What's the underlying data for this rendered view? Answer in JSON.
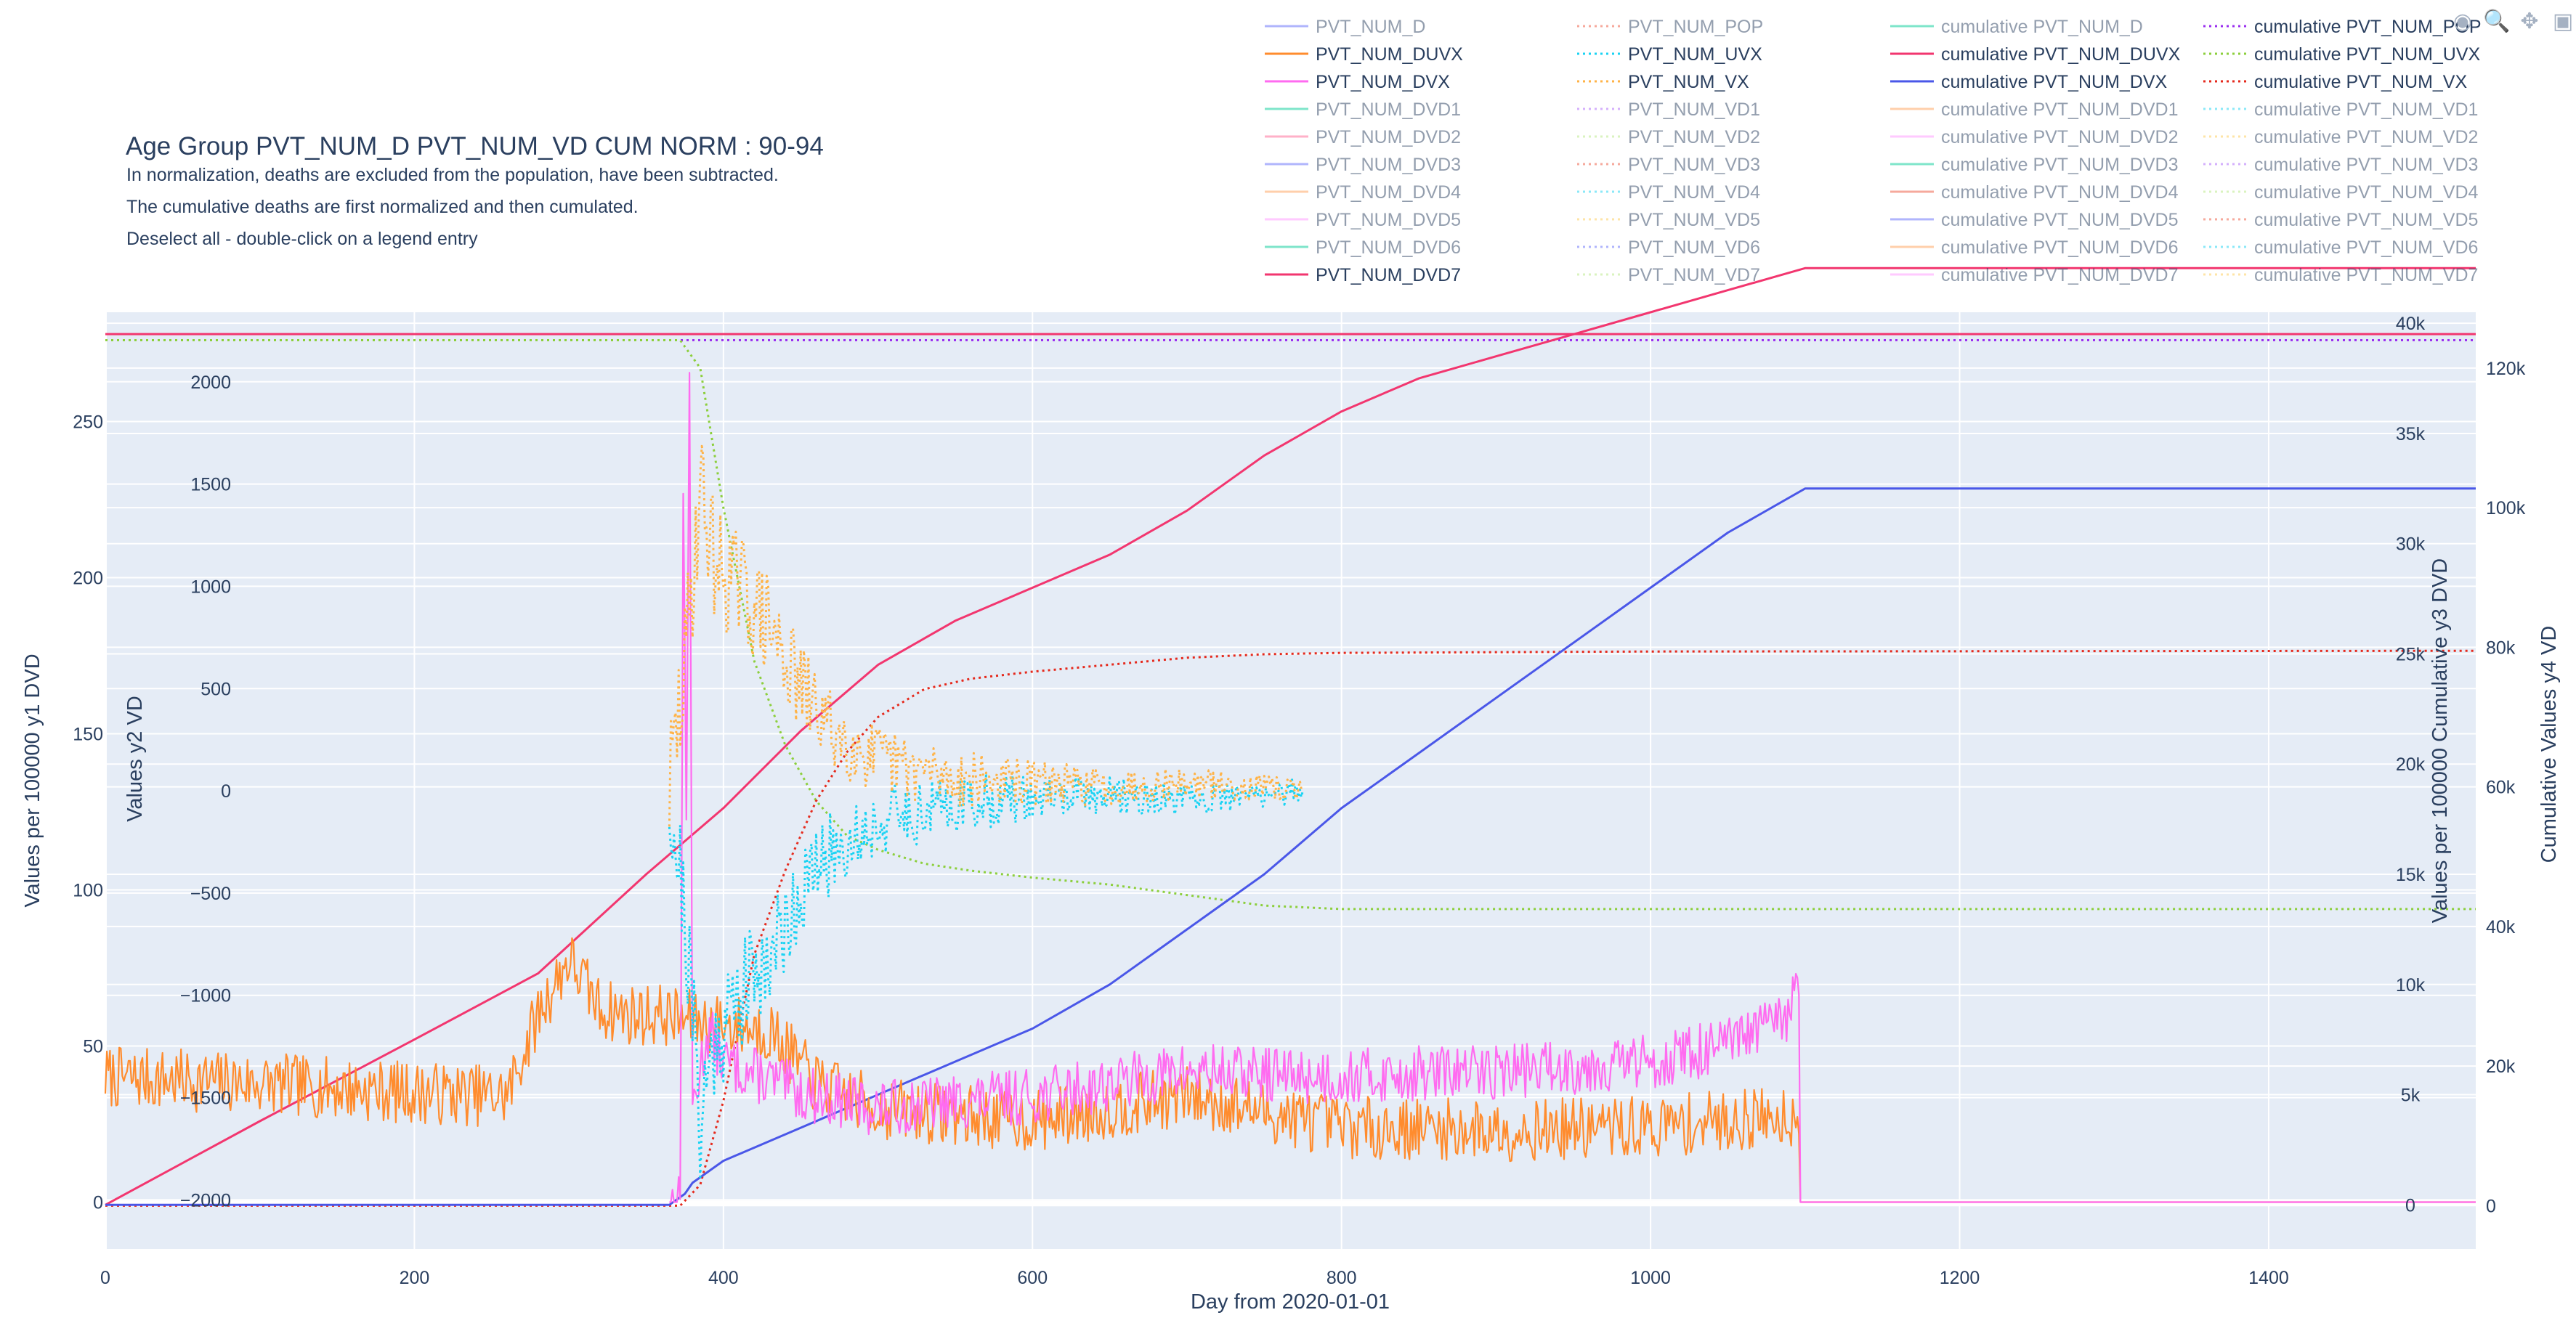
{
  "header": {
    "title": "Age Group PVT_NUM_D PVT_NUM_VD CUM NORM : 90-94",
    "notes": [
      "In normalization, deaths are excluded from the population, have been subtracted.",
      "The cumulative deaths are first normalized and then cumulated.",
      "Deselect all - double-click on a legend entry"
    ]
  },
  "modebar": {
    "icons": [
      "camera-icon",
      "zoom-icon",
      "pan-icon",
      "autoscale-icon"
    ]
  },
  "chart_data": {
    "type": "line",
    "title": "Age Group PVT_NUM_D PVT_NUM_VD CUM NORM : 90-94",
    "xlabel": "Day from 2020-01-01",
    "xlim": [
      0,
      1534
    ],
    "x_ticks": [
      0,
      200,
      400,
      600,
      800,
      1000,
      1200,
      1400
    ],
    "grid": true,
    "legend_position": "top-right",
    "axes": {
      "y1": {
        "label": "Values per 100000 y1 DVD",
        "range": [
          -15,
          285
        ],
        "ticks": [
          0,
          50,
          100,
          150,
          200,
          250
        ],
        "tick_labels": [
          "0",
          "50",
          "100",
          "150",
          "200",
          "250"
        ]
      },
      "y2": {
        "label": "Values y2 VD",
        "range": [
          -2240,
          2340
        ],
        "ticks": [
          -2000,
          -1500,
          -1000,
          -500,
          0,
          500,
          1000,
          1500,
          2000
        ],
        "tick_labels": [
          "−2000",
          "−1500",
          "−1000",
          "−500",
          "0",
          "500",
          "1000",
          "1500",
          "2000"
        ]
      },
      "y3": {
        "label": "Values per 100000 Cumulative y3 DVD",
        "range": [
          -2000,
          40500
        ],
        "ticks": [
          0,
          5000,
          10000,
          15000,
          20000,
          25000,
          30000,
          35000,
          40000
        ],
        "tick_labels": [
          "0",
          "5k",
          "10k",
          "15k",
          "20k",
          "25k",
          "30k",
          "35k",
          "40k"
        ]
      },
      "y4": {
        "label": "Cumulative Values y4 VD",
        "range": [
          -6200,
          128000
        ],
        "ticks": [
          0,
          20000,
          40000,
          60000,
          80000,
          100000,
          120000
        ],
        "tick_labels": [
          "0",
          "20k",
          "40k",
          "60k",
          "80k",
          "100k",
          "120k"
        ]
      }
    },
    "legend": [
      {
        "name": "PVT_NUM_D",
        "color": "#636efa",
        "dash": "solid",
        "active": false
      },
      {
        "name": "PVT_NUM_DUVX",
        "color": "#ff8c2e",
        "dash": "solid",
        "active": true
      },
      {
        "name": "PVT_NUM_DVX",
        "color": "#ff6bf0",
        "dash": "solid",
        "active": true
      },
      {
        "name": "PVT_NUM_DVD1",
        "color": "#00cc96",
        "dash": "solid",
        "active": false
      },
      {
        "name": "PVT_NUM_DVD2",
        "color": "#ff6692",
        "dash": "solid",
        "active": false
      },
      {
        "name": "PVT_NUM_DVD3",
        "color": "#636efa",
        "dash": "solid",
        "active": false
      },
      {
        "name": "PVT_NUM_DVD4",
        "color": "#ffa15a",
        "dash": "solid",
        "active": false
      },
      {
        "name": "PVT_NUM_DVD5",
        "color": "#ff97ff",
        "dash": "solid",
        "active": false
      },
      {
        "name": "PVT_NUM_DVD6",
        "color": "#00cc96",
        "dash": "solid",
        "active": false
      },
      {
        "name": "PVT_NUM_DVD7",
        "color": "#f2366f",
        "dash": "solid",
        "active": true
      },
      {
        "name": "PVT_NUM_POP",
        "color": "#ef553b",
        "dash": "dot",
        "active": false
      },
      {
        "name": "PVT_NUM_UVX",
        "color": "#19d3f3",
        "dash": "dot",
        "active": true
      },
      {
        "name": "PVT_NUM_VX",
        "color": "#ffb347",
        "dash": "dot",
        "active": true
      },
      {
        "name": "PVT_NUM_VD1",
        "color": "#ab63fa",
        "dash": "dot",
        "active": false
      },
      {
        "name": "PVT_NUM_VD2",
        "color": "#b6e880",
        "dash": "dot",
        "active": false
      },
      {
        "name": "PVT_NUM_VD3",
        "color": "#ef553b",
        "dash": "dot",
        "active": false
      },
      {
        "name": "PVT_NUM_VD4",
        "color": "#19d3f3",
        "dash": "dot",
        "active": false
      },
      {
        "name": "PVT_NUM_VD5",
        "color": "#fecb52",
        "dash": "dot",
        "active": false
      },
      {
        "name": "PVT_NUM_VD6",
        "color": "#636efa",
        "dash": "dot",
        "active": false
      },
      {
        "name": "PVT_NUM_VD7",
        "color": "#b6e880",
        "dash": "dot",
        "active": false
      },
      {
        "name": "cumulative PVT_NUM_D",
        "color": "#00cc96",
        "dash": "solid",
        "active": false
      },
      {
        "name": "cumulative PVT_NUM_DUVX",
        "color": "#f2366f",
        "dash": "solid",
        "active": true
      },
      {
        "name": "cumulative PVT_NUM_DVX",
        "color": "#4a57e8",
        "dash": "solid",
        "active": true
      },
      {
        "name": "cumulative PVT_NUM_DVD1",
        "color": "#ffa15a",
        "dash": "solid",
        "active": false
      },
      {
        "name": "cumulative PVT_NUM_DVD2",
        "color": "#ff97ff",
        "dash": "solid",
        "active": false
      },
      {
        "name": "cumulative PVT_NUM_DVD3",
        "color": "#00cc96",
        "dash": "solid",
        "active": false
      },
      {
        "name": "cumulative PVT_NUM_DVD4",
        "color": "#ef553b",
        "dash": "solid",
        "active": false
      },
      {
        "name": "cumulative PVT_NUM_DVD5",
        "color": "#636efa",
        "dash": "solid",
        "active": false
      },
      {
        "name": "cumulative PVT_NUM_DVD6",
        "color": "#ffa15a",
        "dash": "solid",
        "active": false
      },
      {
        "name": "cumulative PVT_NUM_DVD7",
        "color": "#ff97ff",
        "dash": "solid",
        "active": false
      },
      {
        "name": "cumulative PVT_NUM_POP",
        "color": "#9b30f0",
        "dash": "dot",
        "active": true
      },
      {
        "name": "cumulative PVT_NUM_UVX",
        "color": "#8ccf3c",
        "dash": "dot",
        "active": true
      },
      {
        "name": "cumulative PVT_NUM_VX",
        "color": "#e5291c",
        "dash": "dot",
        "active": true
      },
      {
        "name": "cumulative PVT_NUM_VD1",
        "color": "#19d3f3",
        "dash": "dot",
        "active": false
      },
      {
        "name": "cumulative PVT_NUM_VD2",
        "color": "#fecb52",
        "dash": "dot",
        "active": false
      },
      {
        "name": "cumulative PVT_NUM_VD3",
        "color": "#ab63fa",
        "dash": "dot",
        "active": false
      },
      {
        "name": "cumulative PVT_NUM_VD4",
        "color": "#b6e880",
        "dash": "dot",
        "active": false
      },
      {
        "name": "cumulative PVT_NUM_VD5",
        "color": "#ef553b",
        "dash": "dot",
        "active": false
      },
      {
        "name": "cumulative PVT_NUM_VD6",
        "color": "#19d3f3",
        "dash": "dot",
        "active": false
      },
      {
        "name": "cumulative PVT_NUM_VD7",
        "color": "#fecb52",
        "dash": "dot",
        "active": false
      }
    ],
    "series": [
      {
        "name": "cumulative PVT_NUM_POP",
        "axis": "y4",
        "color": "#9b30f0",
        "dash": "dot",
        "width": 3,
        "x": [
          0,
          1534
        ],
        "y": [
          124000,
          124000
        ]
      },
      {
        "name": "cumulative PVT_NUM_UVX",
        "axis": "y4",
        "color": "#8ccf3c",
        "dash": "dot",
        "width": 3,
        "x": [
          0,
          372,
          385,
          400,
          420,
          440,
          460,
          480,
          500,
          530,
          560,
          600,
          650,
          700,
          750,
          800,
          1000,
          1534
        ],
        "y": [
          124000,
          124000,
          120000,
          100000,
          78000,
          66000,
          58000,
          53000,
          51000,
          49000,
          48000,
          47000,
          46000,
          44500,
          43000,
          42500,
          42500,
          42500
        ]
      },
      {
        "name": "cumulative PVT_NUM_VX",
        "axis": "y4",
        "color": "#e5291c",
        "dash": "dot",
        "width": 3,
        "x": [
          0,
          372,
          385,
          400,
          420,
          440,
          460,
          480,
          500,
          530,
          560,
          600,
          650,
          700,
          750,
          800,
          1000,
          1534
        ],
        "y": [
          0,
          0,
          3000,
          15000,
          36000,
          48000,
          58000,
          65000,
          70000,
          74000,
          75500,
          76500,
          77500,
          78500,
          79000,
          79200,
          79400,
          79500
        ]
      },
      {
        "name": "cumulative PVT_NUM_DUVX",
        "axis": "y3",
        "color": "#f2366f",
        "dash": "solid",
        "width": 3,
        "x": [
          0,
          100,
          200,
          280,
          350,
          400,
          450,
          500,
          550,
          600,
          650,
          700,
          750,
          800,
          850,
          900,
          950,
          1000,
          1050,
          1100,
          1534
        ],
        "y": [
          0,
          3800,
          7500,
          10500,
          15000,
          18000,
          21500,
          24500,
          26500,
          28000,
          29500,
          31500,
          34000,
          36000,
          37500,
          38500,
          39500,
          40500,
          41500,
          42500,
          42500
        ]
      },
      {
        "name": "cumulative PVT_NUM_DVX",
        "axis": "y3",
        "color": "#4a57e8",
        "dash": "solid",
        "width": 3,
        "x": [
          0,
          365,
          375,
          380,
          400,
          450,
          500,
          550,
          600,
          650,
          700,
          750,
          800,
          850,
          900,
          950,
          1000,
          1050,
          1100,
          1534
        ],
        "y": [
          0,
          0,
          500,
          1000,
          2000,
          3500,
          5000,
          6500,
          8000,
          10000,
          12500,
          15000,
          18000,
          20500,
          23000,
          25500,
          28000,
          30500,
          32500,
          32500
        ]
      },
      {
        "name": "PVT_NUM_DVD7",
        "axis": "y1",
        "color": "#f2366f",
        "dash": "solid",
        "width": 3,
        "x": [
          0,
          1097,
          1534
        ],
        "y": [
          278,
          278,
          278
        ]
      }
    ],
    "noisy_series": [
      {
        "name": "PVT_NUM_DUVX",
        "axis": "y1",
        "color": "#ff8c2e",
        "dash": "solid",
        "width": 2.2,
        "x_start": 0,
        "x_end": 1096,
        "trend": {
          "x": [
            0,
            100,
            200,
            260,
            280,
            300,
            320,
            340,
            360,
            380,
            400,
            430,
            460,
            500,
            600,
            700,
            800,
            900,
            1000,
            1096
          ],
          "y": [
            40,
            38,
            35,
            34,
            60,
            78,
            62,
            60,
            60,
            58,
            57,
            55,
            38,
            30,
            26,
            34,
            24,
            23,
            24,
            28
          ]
        },
        "amplitude": 10,
        "seed": 7
      },
      {
        "name": "PVT_NUM_DVX",
        "axis": "y1",
        "color": "#ff6bf0",
        "dash": "solid",
        "width": 2.2,
        "x_start": 365,
        "x_end": 1096,
        "trend": {
          "x": [
            365,
            372,
            374,
            376,
            378,
            380,
            390,
            400,
            450,
            500,
            600,
            700,
            800,
            900,
            1000,
            1050,
            1090,
            1096
          ],
          "y": [
            0,
            0,
            230,
            120,
            270,
            30,
            55,
            45,
            35,
            30,
            34,
            42,
            40,
            42,
            45,
            50,
            60,
            70
          ]
        },
        "amplitude": 9,
        "seed": 13
      },
      {
        "name": "PVT_NUM_UVX",
        "axis": "y2",
        "color": "#19d3f3",
        "dash": "dot",
        "width": 3,
        "x_start": 365,
        "x_end": 775,
        "trend": {
          "x": [
            365,
            375,
            385,
            395,
            410,
            430,
            450,
            470,
            500,
            550,
            650,
            700,
            775
          ],
          "y": [
            0,
            -600,
            -1600,
            -1200,
            -1000,
            -800,
            -500,
            -300,
            -150,
            -60,
            -20,
            -50,
            0
          ]
        },
        "amplitude": 320,
        "seed": 21,
        "decay": 180
      },
      {
        "name": "PVT_NUM_VX",
        "axis": "y2",
        "color": "#ffb347",
        "dash": "dot",
        "width": 3,
        "x_start": 365,
        "x_end": 775,
        "trend": {
          "x": [
            365,
            375,
            385,
            395,
            410,
            430,
            450,
            470,
            500,
            550,
            650,
            700,
            775
          ],
          "y": [
            0,
            600,
            1500,
            1100,
            1000,
            800,
            500,
            300,
            150,
            60,
            20,
            40,
            0
          ]
        },
        "amplitude": 320,
        "seed": 29,
        "decay": 180
      }
    ]
  }
}
